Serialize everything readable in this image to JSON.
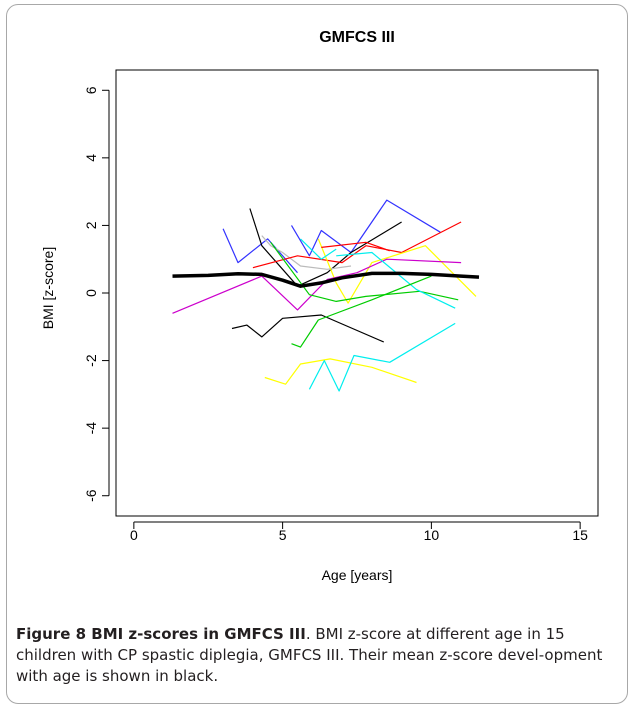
{
  "chart_data": {
    "type": "line",
    "title": "GMFCS III",
    "xlabel": "Age [years]",
    "ylabel": "BMI [z-score]",
    "xlim": [
      -0.6,
      15.6
    ],
    "ylim": [
      -6.6,
      6.6
    ],
    "x_ticks": [
      0,
      5,
      10,
      15
    ],
    "y_ticks": [
      -6,
      -4,
      -2,
      0,
      2,
      4,
      6
    ],
    "x_tick_labels": [
      "0",
      "5",
      "10",
      "15"
    ],
    "y_tick_labels": [
      "-6",
      "-4",
      "-2",
      "0",
      "2",
      "4",
      "6"
    ],
    "grid": false,
    "legend": "none",
    "series": [
      {
        "color": "#3333ff",
        "points": [
          [
            3.0,
            1.9
          ],
          [
            3.5,
            0.9
          ],
          [
            4.5,
            1.6
          ],
          [
            5.5,
            0.6
          ]
        ]
      },
      {
        "color": "#3333ff",
        "points": [
          [
            5.3,
            2.0
          ],
          [
            5.9,
            1.1
          ],
          [
            6.3,
            1.85
          ],
          [
            7.3,
            1.2
          ],
          [
            8.5,
            2.75
          ],
          [
            10.3,
            1.8
          ]
        ]
      },
      {
        "color": "#000000",
        "points": [
          [
            3.9,
            2.5
          ],
          [
            4.3,
            1.4
          ],
          [
            5.5,
            0.2
          ],
          [
            6.5,
            0.6
          ],
          [
            7.3,
            1.2
          ],
          [
            9.0,
            2.1
          ]
        ]
      },
      {
        "color": "#bbbbbb",
        "points": [
          [
            4.3,
            1.7
          ],
          [
            4.6,
            1.4
          ],
          [
            5.0,
            1.2
          ],
          [
            5.6,
            0.8
          ],
          [
            6.5,
            0.7
          ],
          [
            7.3,
            0.8
          ]
        ]
      },
      {
        "color": "#ff0000",
        "points": [
          [
            4.0,
            0.75
          ],
          [
            5.5,
            1.1
          ],
          [
            7.0,
            0.9
          ],
          [
            7.8,
            1.4
          ],
          [
            9.0,
            1.2
          ],
          [
            11.0,
            2.1
          ]
        ]
      },
      {
        "color": "#ffff00",
        "points": [
          [
            6.2,
            1.6
          ],
          [
            6.8,
            0.3
          ],
          [
            7.2,
            -0.3
          ],
          [
            8.0,
            0.9
          ],
          [
            9.8,
            1.4
          ],
          [
            11.5,
            -0.1
          ]
        ]
      },
      {
        "color": "#cc00cc",
        "points": [
          [
            1.3,
            -0.6
          ],
          [
            4.3,
            0.5
          ],
          [
            5.5,
            -0.5
          ],
          [
            6.5,
            0.4
          ],
          [
            7.5,
            0.6
          ],
          [
            8.5,
            1.0
          ],
          [
            11.0,
            0.9
          ]
        ]
      },
      {
        "color": "#00cc00",
        "points": [
          [
            4.6,
            1.5
          ],
          [
            5.9,
            -0.05
          ],
          [
            6.8,
            -0.25
          ],
          [
            7.8,
            -0.1
          ],
          [
            9.6,
            0.05
          ],
          [
            10.9,
            -0.2
          ]
        ]
      },
      {
        "color": "#00eeee",
        "points": [
          [
            6.8,
            1.1
          ],
          [
            8.0,
            1.2
          ],
          [
            9.5,
            0.1
          ],
          [
            10.8,
            -0.45
          ]
        ]
      },
      {
        "color": "#000000",
        "points": [
          [
            3.3,
            -1.05
          ],
          [
            3.8,
            -0.95
          ],
          [
            4.3,
            -1.3
          ],
          [
            5.0,
            -0.75
          ],
          [
            6.3,
            -0.65
          ],
          [
            8.4,
            -1.45
          ]
        ]
      },
      {
        "color": "#00cc00",
        "points": [
          [
            5.3,
            -1.5
          ],
          [
            5.6,
            -1.6
          ],
          [
            6.2,
            -0.8
          ],
          [
            8.0,
            -0.2
          ],
          [
            10.0,
            0.5
          ]
        ]
      },
      {
        "color": "#ffff00",
        "points": [
          [
            4.4,
            -2.5
          ],
          [
            5.1,
            -2.7
          ],
          [
            5.6,
            -2.1
          ],
          [
            6.6,
            -1.95
          ],
          [
            8.0,
            -2.2
          ],
          [
            9.5,
            -2.65
          ]
        ]
      },
      {
        "color": "#00eeee",
        "points": [
          [
            5.9,
            -2.85
          ],
          [
            6.4,
            -2.0
          ],
          [
            6.9,
            -2.9
          ],
          [
            7.4,
            -1.85
          ],
          [
            8.6,
            -2.05
          ],
          [
            10.8,
            -0.9
          ]
        ]
      },
      {
        "color": "#00eeee",
        "points": [
          [
            5.6,
            1.6
          ],
          [
            6.3,
            1.0
          ],
          [
            6.8,
            1.3
          ]
        ]
      },
      {
        "color": "#ff0000",
        "points": [
          [
            6.3,
            1.35
          ],
          [
            7.8,
            1.5
          ],
          [
            8.6,
            1.25
          ]
        ]
      }
    ],
    "mean_series": {
      "color": "#000000",
      "points": [
        [
          1.3,
          0.5
        ],
        [
          2.5,
          0.52
        ],
        [
          3.5,
          0.57
        ],
        [
          4.3,
          0.55
        ],
        [
          5.0,
          0.38
        ],
        [
          5.6,
          0.2
        ],
        [
          6.3,
          0.3
        ],
        [
          7.0,
          0.45
        ],
        [
          8.0,
          0.58
        ],
        [
          9.0,
          0.58
        ],
        [
          10.0,
          0.55
        ],
        [
          11.0,
          0.5
        ],
        [
          11.6,
          0.47
        ]
      ]
    }
  },
  "caption": {
    "label": "Figure 8 BMI z-scores in GMFCS III",
    "text": ". BMI z-score at different age in 15 children with CP spastic diplegia, GMFCS III. Their mean z-score devel-opment with age is shown in black."
  }
}
